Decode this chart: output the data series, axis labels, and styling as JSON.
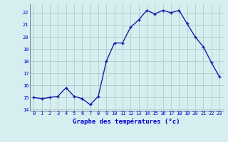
{
  "x": [
    0,
    1,
    2,
    3,
    4,
    5,
    6,
    7,
    8,
    9,
    10,
    11,
    12,
    13,
    14,
    15,
    16,
    17,
    18,
    19,
    20,
    21,
    22,
    23
  ],
  "y": [
    15.0,
    14.9,
    15.0,
    15.1,
    15.8,
    15.1,
    14.9,
    14.4,
    15.1,
    18.0,
    19.5,
    19.5,
    20.8,
    21.4,
    22.2,
    21.9,
    22.2,
    22.0,
    22.2,
    21.1,
    20.0,
    19.2,
    17.9,
    16.7
  ],
  "line_color": "#1a1aaa",
  "marker": "+",
  "marker_size": 3.5,
  "marker_lw": 1.0,
  "bg_color": "#d6eef0",
  "grid_color": "#b0cccc",
  "xlabel": "Graphe des températures (°c)",
  "xlabel_color": "#0000cc",
  "tick_color": "#0000cc",
  "ylim": [
    13.9,
    22.7
  ],
  "yticks": [
    14,
    15,
    16,
    17,
    18,
    19,
    20,
    21,
    22
  ],
  "xticks": [
    0,
    1,
    2,
    3,
    4,
    5,
    6,
    7,
    8,
    9,
    10,
    11,
    12,
    13,
    14,
    15,
    16,
    17,
    18,
    19,
    20,
    21,
    22,
    23
  ],
  "tick_fontsize": 5.0,
  "xlabel_fontsize": 6.5,
  "line_width": 1.0
}
